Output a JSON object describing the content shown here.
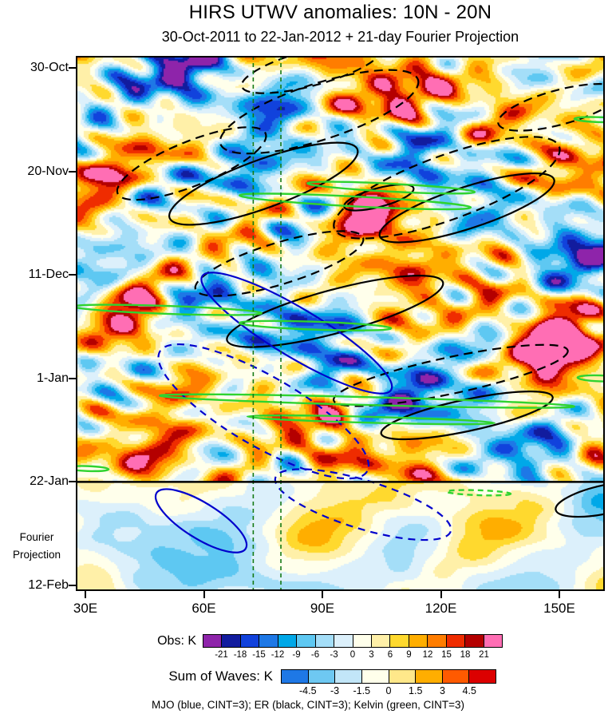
{
  "title": "HIRS UTWV anomalies: 10N - 20N",
  "subtitle": "30-Oct-2011 to 22-Jan-2012 + 21-day Fourier Projection",
  "caption": "MJO (blue, CINT=3); ER (black, CINT=3); Kelvin (green, CINT=3)",
  "axes": {
    "y_ticks": [
      {
        "label": "30-Oct",
        "day": 0
      },
      {
        "label": "20-Nov",
        "day": 21
      },
      {
        "label": "11-Dec",
        "day": 42
      },
      {
        "label": "1-Jan",
        "day": 63
      },
      {
        "label": "22-Jan",
        "day": 84
      },
      {
        "label": "12-Feb",
        "day": 105
      }
    ],
    "fourier_line1": "Fourier",
    "fourier_line2": "Projection",
    "x_ticks": [
      {
        "label": "30E",
        "lon": 30
      },
      {
        "label": "60E",
        "lon": 60
      },
      {
        "label": "90E",
        "lon": 90
      },
      {
        "label": "120E",
        "lon": 120
      },
      {
        "label": "150E",
        "lon": 150
      }
    ]
  },
  "colorbars": {
    "obs": {
      "label": "Obs: K",
      "ticks": [
        -21,
        -18,
        -15,
        -12,
        -9,
        -6,
        -3,
        0,
        3,
        6,
        9,
        12,
        15,
        18,
        21
      ],
      "colors": [
        "#8E24AA",
        "#121C9E",
        "#1142DC",
        "#1E78E6",
        "#00A8E8",
        "#5EC8F2",
        "#A4DEF8",
        "#DCF0FB",
        "#FFFFEB",
        "#FFF0A8",
        "#FFD92E",
        "#FFAE00",
        "#FF7D00",
        "#EF2C00",
        "#B40000",
        "#FF6EB4"
      ]
    },
    "waves": {
      "label": "Sum of Waves: K",
      "ticks": [
        -4.5,
        -3,
        -1.5,
        0,
        1.5,
        3,
        4.5
      ],
      "colors": [
        "#1E78E6",
        "#6EC8F2",
        "#C2E6F8",
        "#FFFFEB",
        "#FFE88A",
        "#FFAE00",
        "#FF5A00",
        "#DC0000"
      ]
    }
  },
  "chart_data": {
    "type": "heatmap",
    "title": "HIRS UTWV anomalies: 10N - 20N",
    "subtitle": "30-Oct-2011 to 22-Jan-2012 + 21-day Fourier Projection",
    "field_units": "K",
    "fill_contour_interval": 3,
    "fill_levels": [
      -21,
      -18,
      -15,
      -12,
      -9,
      -6,
      -3,
      0,
      3,
      6,
      9,
      12,
      15,
      18,
      21
    ],
    "x_axis": {
      "quantity": "longitude",
      "units": "degE",
      "range": [
        27.6,
        161.5
      ],
      "ticks": [
        30,
        60,
        90,
        120,
        150
      ]
    },
    "y_axis": {
      "quantity": "time",
      "range_days": [
        -2.4,
        106.1
      ],
      "tick_days": [
        0,
        21,
        42,
        63,
        84,
        105
      ],
      "tick_labels": [
        "30-Oct",
        "20-Nov",
        "11-Dec",
        "1-Jan",
        "22-Jan",
        "12-Feb"
      ]
    },
    "observation_end_day": 84,
    "reference_lons": [
      72.5,
      79.5
    ],
    "field_model": {
      "bias": 2,
      "components": [
        {
          "amp": 5.5,
          "wl": 130,
          "T": 46,
          "dir": 1,
          "ph": 0.12,
          "hf": false
        },
        {
          "amp": 3.2,
          "wl": 80,
          "T": 38,
          "dir": 1,
          "ph": 0.58,
          "hf": false
        },
        {
          "amp": 4.6,
          "wl": 42,
          "T": 27,
          "dir": -1,
          "ph": 0.31,
          "hf": false
        },
        {
          "amp": 3.0,
          "wl": 58,
          "T": 33,
          "dir": -1,
          "ph": 0.77,
          "hf": false
        },
        {
          "amp": 3.4,
          "wl": 52,
          "T": 8,
          "dir": 1,
          "ph": 0.09,
          "hf": true
        },
        {
          "amp": 2.6,
          "wl": 34,
          "T": 6,
          "dir": 1,
          "ph": 0.49,
          "hf": true
        },
        {
          "amp": 3.0,
          "wl": 23,
          "T": 12,
          "dir": -1,
          "ph": 0.26,
          "hf": true
        },
        {
          "amp": 2.6,
          "wl": 18,
          "T": 9,
          "dir": 1,
          "ph": 0.71,
          "hf": true
        },
        {
          "amp": 2.4,
          "wl": 28,
          "T": 16,
          "dir": -1,
          "ph": 0.44,
          "hf": true
        },
        {
          "amp": 2.0,
          "wl": 14,
          "T": 11,
          "dir": 1,
          "ph": 0.88,
          "hf": true
        },
        {
          "amp": 2.4,
          "wl": 95,
          "T": 60,
          "dir": -1,
          "ph": 0.21,
          "hf": false
        },
        {
          "amp": 2.0,
          "wl": 16,
          "T": 7,
          "dir": -1,
          "ph": 0.04,
          "hf": true
        },
        {
          "amp": 1.8,
          "wl": 12,
          "T": 14,
          "dir": 1,
          "ph": 0.36,
          "hf": true
        }
      ],
      "modulators": [
        {
          "amp": 5.0,
          "wl1": 32,
          "T1": 18,
          "dir1": -1,
          "ph1": 0.2,
          "wl2": 72,
          "T2": 34,
          "dir2": 1,
          "ph2": 0.6,
          "hf": true
        },
        {
          "amp": 4.2,
          "wl1": 20,
          "T1": 10,
          "dir1": 1,
          "ph1": 0.83,
          "wl2": 55,
          "T2": 26,
          "dir2": -1,
          "ph2": 0.15,
          "hf": true
        },
        {
          "amp": 3.6,
          "wl1": 45,
          "T1": 40,
          "dir1": 1,
          "ph1": 0.4,
          "wl2": 150,
          "T2": 70,
          "dir2": -1,
          "ph2": 0.9,
          "hf": false
        }
      ],
      "anchors": [
        {
          "lon": 57,
          "day": 5,
          "amp": -18,
          "slon": 9,
          "sday": 5
        },
        {
          "lon": 100,
          "day": 7,
          "amp": 14,
          "slon": 12,
          "sday": 5
        },
        {
          "lon": 73,
          "day": 22,
          "amp": -16,
          "slon": 8,
          "sday": 5
        },
        {
          "lon": 102,
          "day": 27,
          "amp": 20,
          "slon": 7,
          "sday": 4
        },
        {
          "lon": 131,
          "day": 14,
          "amp": -10,
          "slon": 8,
          "sday": 4
        },
        {
          "lon": 42,
          "day": 50,
          "amp": 15,
          "slon": 8,
          "sday": 5
        },
        {
          "lon": 84,
          "day": 53,
          "amp": -15,
          "slon": 9,
          "sday": 6
        },
        {
          "lon": 148,
          "day": 55,
          "amp": 18,
          "slon": 8,
          "sday": 5
        },
        {
          "lon": 95,
          "day": 75,
          "amp": 12,
          "slon": 10,
          "sday": 5
        },
        {
          "lon": 120,
          "day": 68,
          "amp": -10,
          "slon": 8,
          "sday": 4
        },
        {
          "lon": 62,
          "day": 91,
          "amp": -8,
          "slon": 7,
          "sday": 5
        },
        {
          "lon": 87,
          "day": 94,
          "amp": 9,
          "slon": 9,
          "sday": 5
        },
        {
          "lon": 157,
          "day": 87,
          "amp": -9,
          "slon": 5,
          "sday": 4
        },
        {
          "lon": 40,
          "day": 86,
          "amp": 6,
          "slon": 10,
          "sday": 6
        },
        {
          "lon": 95,
          "day": 104,
          "amp": -5,
          "slon": 60,
          "sday": 6
        }
      ],
      "projection": {
        "start_day": 84,
        "lowfreq_factor": 0.6,
        "highfreq_factor": 0.12
      }
    },
    "wave_contours": {
      "mjo": {
        "color": "#0000CC",
        "cint": 3,
        "ellipses": [
          {
            "lon": 83.5,
            "day": 53.8,
            "rx_lon": 27.9,
            "ry_day": 4.9,
            "rot": 31,
            "style": "solid"
          },
          {
            "lon": 75.1,
            "day": 69.7,
            "rx_lon": 30.3,
            "ry_day": 7.1,
            "rot": 30,
            "style": "dashed"
          },
          {
            "lon": 100.3,
            "day": 88.6,
            "rx_lon": 23.2,
            "ry_day": 4.9,
            "rot": 17,
            "style": "dashed"
          },
          {
            "lon": 59.3,
            "day": 91.9,
            "rx_lon": 13.3,
            "ry_day": 3.6,
            "rot": 32,
            "style": "solid"
          }
        ]
      },
      "er": {
        "color": "#000000",
        "cint": 3,
        "ellipses": [
          {
            "lon": 89.2,
            "day": 8.9,
            "rx_lon": 26.3,
            "ry_day": 5.7,
            "rot": -18,
            "style": "dashed"
          },
          {
            "lon": 56.9,
            "day": 19.4,
            "rx_lon": 20.2,
            "ry_day": 4.5,
            "rot": -22,
            "style": "dashed"
          },
          {
            "lon": 87.2,
            "day": 0.0,
            "rx_lon": 18.2,
            "ry_day": 3.6,
            "rot": -15,
            "style": "dashed"
          },
          {
            "lon": 150.0,
            "day": 8.0,
            "rx_lon": 16.0,
            "ry_day": 3.5,
            "rot": -15,
            "style": "dashed"
          },
          {
            "lon": 75.1,
            "day": 23.5,
            "rx_lon": 25.3,
            "ry_day": 4.9,
            "rot": -20,
            "style": "solid"
          },
          {
            "lon": 121.5,
            "day": 24.3,
            "rx_lon": 30.3,
            "ry_day": 6.5,
            "rot": -20,
            "style": "dashed"
          },
          {
            "lon": 126.6,
            "day": 28.4,
            "rx_lon": 23.2,
            "ry_day": 4.2,
            "rot": -18,
            "style": "solid"
          },
          {
            "lon": 104.3,
            "day": 26.3,
            "rx_lon": 9.1,
            "ry_day": 1.9,
            "rot": -15,
            "style": "solid"
          },
          {
            "lon": 79.1,
            "day": 39.7,
            "rx_lon": 22.2,
            "ry_day": 4.2,
            "rot": -17,
            "style": "dashed"
          },
          {
            "lon": 93.2,
            "day": 49.4,
            "rx_lon": 28.3,
            "ry_day": 4.4,
            "rot": -15,
            "style": "solid"
          },
          {
            "lon": 122.5,
            "day": 62.4,
            "rx_lon": 30.3,
            "ry_day": 3.7,
            "rot": -12,
            "style": "dashed"
          },
          {
            "lon": 126.6,
            "day": 70.5,
            "rx_lon": 22.2,
            "ry_day": 3.2,
            "rot": -12,
            "style": "solid"
          },
          {
            "lon": 161.9,
            "day": 87.5,
            "rx_lon": 13.1,
            "ry_day": 2.9,
            "rot": -12,
            "style": "solid"
          }
        ]
      },
      "kelvin": {
        "color": "#2FD32F",
        "cint": 3,
        "ellipses": [
          {
            "lon": 107.4,
            "day": 24.3,
            "rx_lon": 21.2,
            "ry_day": 0.8,
            "rot": 3,
            "style": "solid"
          },
          {
            "lon": 98.3,
            "day": 27.1,
            "rx_lon": 29.3,
            "ry_day": 1.0,
            "rot": 3,
            "style": "solid"
          },
          {
            "lon": 50.8,
            "day": 49.1,
            "rx_lon": 23.8,
            "ry_day": 0.8,
            "rot": 2,
            "style": "solid"
          },
          {
            "lon": 88.2,
            "day": 52.3,
            "rx_lon": 19.2,
            "ry_day": 0.8,
            "rot": 2,
            "style": "solid"
          },
          {
            "lon": 101.3,
            "day": 67.6,
            "rx_lon": 52.5,
            "ry_day": 0.8,
            "rot": 1.5,
            "style": "solid"
          },
          {
            "lon": 102.3,
            "day": 71.4,
            "rx_lon": 31.3,
            "ry_day": 0.6,
            "rot": 1.5,
            "style": "solid"
          },
          {
            "lon": 159.9,
            "day": 10.5,
            "rx_lon": 6.1,
            "ry_day": 0.5,
            "rot": 2,
            "style": "solid"
          },
          {
            "lon": 160.3,
            "day": 63.0,
            "rx_lon": 5.7,
            "ry_day": 0.6,
            "rot": 2,
            "style": "solid"
          },
          {
            "lon": 129.6,
            "day": 86.2,
            "rx_lon": 8.1,
            "ry_day": 0.5,
            "rot": 2,
            "style": "dashed"
          },
          {
            "lon": 30.6,
            "day": 81.3,
            "rx_lon": 5.3,
            "ry_day": 0.5,
            "rot": 2,
            "style": "solid"
          }
        ]
      }
    }
  }
}
